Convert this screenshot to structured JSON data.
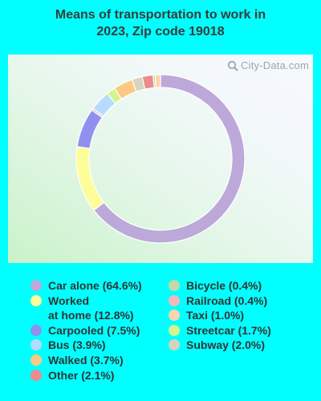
{
  "chart_data": {
    "type": "pie",
    "title_lines": [
      "Means of transportation to work in",
      "2023, Zip code 19018"
    ],
    "categories": [
      "Car alone",
      "Worked at home",
      "Carpooled",
      "Railroad",
      "Bus",
      "Streetcar",
      "Walked",
      "Subway",
      "Other",
      "Bicycle",
      "Taxi"
    ],
    "series": [
      {
        "values": [
          64.6,
          12.8,
          7.5,
          0.4,
          3.9,
          1.7,
          3.7,
          2.0,
          2.1,
          0.4,
          1.0
        ]
      }
    ],
    "colors": [
      "#bda8da",
      "#fdfd9a",
      "#9090ee",
      "#f3b7b7",
      "#b5dcfc",
      "#d3f58f",
      "#fcc985",
      "#d7d3bd",
      "#eb8b8b",
      "#c4d8a8",
      "#fbd5ab"
    ],
    "donut": true,
    "legend_position": "bottom"
  },
  "watermark": "City-Data.com",
  "legend": {
    "left": [
      {
        "lines": [
          "Car alone (64.6%)"
        ],
        "color": "#bda8da"
      },
      {
        "lines": [
          "Worked",
          "at home (12.8%)"
        ],
        "color": "#fdfd9a"
      },
      {
        "lines": [
          "Carpooled (7.5%)"
        ],
        "color": "#9090ee"
      },
      {
        "lines": [
          "Bus (3.9%)"
        ],
        "color": "#b5dcfc"
      },
      {
        "lines": [
          "Walked (3.7%)"
        ],
        "color": "#fcc985"
      },
      {
        "lines": [
          "Other (2.1%)"
        ],
        "color": "#eb8b8b"
      }
    ],
    "right": [
      {
        "lines": [
          "Bicycle (0.4%)"
        ],
        "color": "#c4d8a8"
      },
      {
        "lines": [
          "Railroad (0.4%)"
        ],
        "color": "#f3b7b7"
      },
      {
        "lines": [
          "Taxi (1.0%)"
        ],
        "color": "#fbd5ab"
      },
      {
        "lines": [
          "Streetcar (1.7%)"
        ],
        "color": "#d3f58f"
      },
      {
        "lines": [
          "Subway (2.0%)"
        ],
        "color": "#d7d3bd"
      }
    ]
  }
}
